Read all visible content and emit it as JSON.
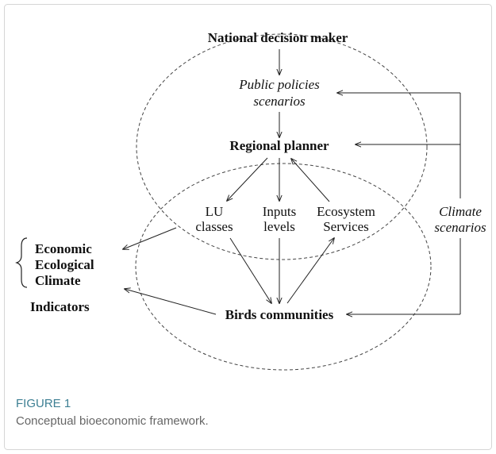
{
  "diagram": {
    "national": "National decision maker",
    "policies": [
      "Public policies",
      "scenarios"
    ],
    "regional": "Regional planner",
    "lu": [
      "LU",
      "classes"
    ],
    "inputs": [
      "Inputs",
      "levels"
    ],
    "ecosystem": [
      "Ecosystem",
      "Services"
    ],
    "climate_scenarios": [
      "Climate",
      "scenarios"
    ],
    "birds": "Birds communities",
    "indicator_types": [
      "Economic",
      "Ecological",
      "Climate"
    ],
    "indicators": "Indicators"
  },
  "caption": {
    "label": "FIGURE 1",
    "text": "Conceptual bioeconomic framework."
  }
}
